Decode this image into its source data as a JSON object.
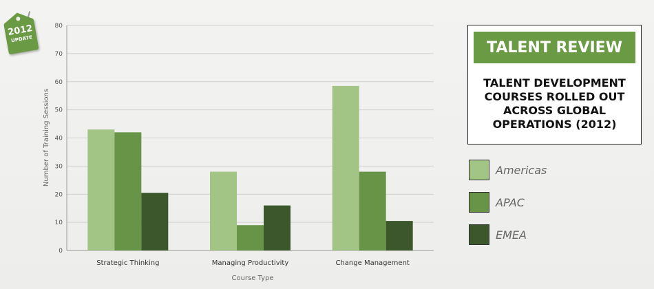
{
  "badge": {
    "year": "2012",
    "label": "UPDATE"
  },
  "header": {
    "banner": "TALENT REVIEW",
    "subtitle_lines": [
      "TALENT DEVELOPMENT",
      "COURSES ROLLED OUT",
      "ACROSS GLOBAL",
      "OPERATIONS (2012)"
    ]
  },
  "colors": {
    "Americas": "#a2c485",
    "APAC": "#679447",
    "EMEA": "#3d572c",
    "accent": "#6b9a45"
  },
  "chart_data": {
    "type": "bar",
    "title": "TALENT DEVELOPMENT COURSES ROLLED OUT ACROSS GLOBAL OPERATIONS (2012)",
    "xlabel": "Course Type",
    "ylabel": "Number of Training Sessions",
    "categories": [
      "Strategic Thinking",
      "Managing Productivity",
      "Change Management"
    ],
    "series": [
      {
        "name": "Americas",
        "values": [
          43,
          28,
          58.5
        ]
      },
      {
        "name": "APAC",
        "values": [
          42,
          9,
          28
        ]
      },
      {
        "name": "EMEA",
        "values": [
          20.5,
          16,
          10.5
        ]
      }
    ],
    "ylim": [
      0,
      80
    ],
    "yticks": [
      0,
      10,
      20,
      30,
      40,
      50,
      60,
      70,
      80
    ],
    "grid": true,
    "legend_position": "right"
  }
}
